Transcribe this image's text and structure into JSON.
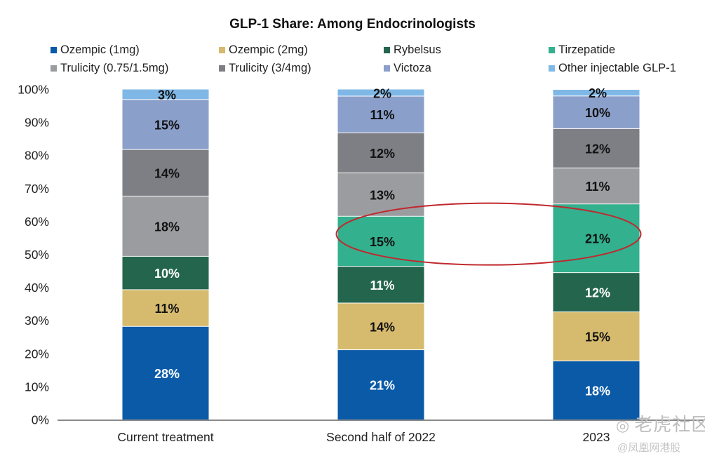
{
  "chart_data": {
    "type": "bar",
    "stacked": true,
    "percent_scale": true,
    "title": "GLP-1 Share: Among Endocrinologists",
    "xlabel": "",
    "ylabel": "",
    "ylim": [
      0,
      100
    ],
    "yticks": [
      "0%",
      "10%",
      "20%",
      "30%",
      "40%",
      "50%",
      "60%",
      "70%",
      "80%",
      "90%",
      "100%"
    ],
    "categories": [
      "Current treatment",
      "Second half of 2022",
      "2023"
    ],
    "series": [
      {
        "name": "Ozempic (1mg)",
        "color": "#0a5aa8",
        "label_color": "#ffffff",
        "values": [
          28,
          21,
          18
        ],
        "labels": [
          "28%",
          "21%",
          "18%"
        ]
      },
      {
        "name": "Ozempic (2mg)",
        "color": "#d6bb6e",
        "label_color": "#111111",
        "values": [
          11,
          14,
          15
        ],
        "labels": [
          "11%",
          "14%",
          "15%"
        ]
      },
      {
        "name": "Rybelsus",
        "color": "#23654d",
        "label_color": "#ffffff",
        "values": [
          10,
          11,
          12
        ],
        "labels": [
          "10%",
          "11%",
          "12%"
        ]
      },
      {
        "name": "Tirzepatide",
        "color": "#33b08e",
        "label_color": "#111111",
        "values": [
          0,
          15,
          21
        ],
        "labels": [
          "",
          "15%",
          "21%"
        ]
      },
      {
        "name": "Trulicity (0.75/1.5mg)",
        "color": "#9b9ca0",
        "label_color": "#111111",
        "values": [
          18,
          13,
          11
        ],
        "labels": [
          "18%",
          "13%",
          "11%"
        ]
      },
      {
        "name": "Trulicity (3/4mg)",
        "color": "#7e7f84",
        "label_color": "#111111",
        "values": [
          14,
          12,
          12
        ],
        "labels": [
          "14%",
          "12%",
          "12%"
        ]
      },
      {
        "name": "Victoza",
        "color": "#8b9fcb",
        "label_color": "#111111",
        "values": [
          15,
          11,
          10
        ],
        "labels": [
          "15%",
          "11%",
          "10%"
        ]
      },
      {
        "name": "Other injectable GLP-1",
        "color": "#7fb8e6",
        "label_color": "#111111",
        "values": [
          3,
          2,
          2
        ],
        "labels": [
          "3%",
          "2%",
          "2%"
        ]
      }
    ],
    "legend_position": "top",
    "grid": false,
    "highlight": {
      "series": "Tirzepatide",
      "categories": [
        "Second half of 2022",
        "2023"
      ],
      "shape": "ellipse",
      "color": "#c0282d"
    }
  },
  "watermark": {
    "text": "老虎社区",
    "subtext": "@凤凰网港股"
  }
}
